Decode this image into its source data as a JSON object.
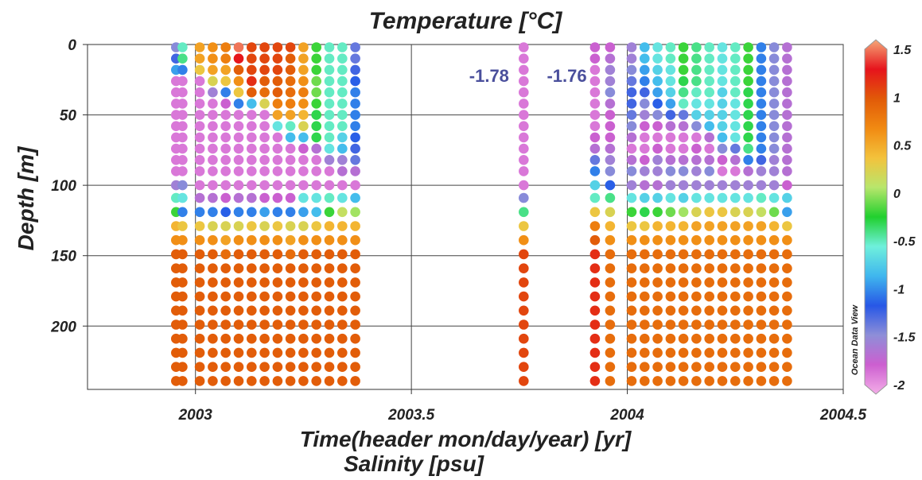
{
  "chart_data": {
    "type": "scatter",
    "title": "Temperature [°C]",
    "xlabel": "Time(header mon/day/year) [yr]",
    "xlabel2": "Salinity [psu]",
    "ylabel": "Depth [m]",
    "xlim": [
      2002.75,
      2004.5
    ],
    "ylim": [
      0,
      245
    ],
    "y_inverted": true,
    "grid": true,
    "x_ticks": [
      2003,
      2003.5,
      2004,
      2004.5
    ],
    "x_tick_labels": [
      "2003",
      "2003.5",
      "2004",
      "2004.5"
    ],
    "y_ticks": [
      0,
      50,
      100,
      150,
      200
    ],
    "y_tick_labels": [
      "0",
      "50",
      "100",
      "150",
      "200"
    ],
    "colorbar": {
      "range": [
        -2,
        1.5
      ],
      "ticks": [
        1.5,
        1,
        0.5,
        0,
        -0.5,
        -1,
        -1.5,
        -2
      ],
      "tick_labels": [
        "1.5",
        "1",
        "0.5",
        "0",
        "-0.5",
        "-1",
        "-1.5",
        "-2"
      ],
      "palette": [
        "#f4aee8",
        "#cc5fd0",
        "#8e8ed8",
        "#2757e6",
        "#3fb6ee",
        "#6ff0dc",
        "#21d02e",
        "#b8e66c",
        "#f3c23c",
        "#f18a12",
        "#e15a08",
        "#e6141c",
        "#f5a878"
      ],
      "source_label": "Ocean Data View"
    },
    "annotations": [
      {
        "text": "-1.78",
        "x": 2003.68,
        "y": 22
      },
      {
        "text": "-1.76",
        "x": 2003.86,
        "y": 22
      }
    ],
    "depth_levels": [
      2,
      10,
      18,
      26,
      34,
      42,
      50,
      58,
      66,
      74,
      82,
      90,
      100,
      109,
      119,
      129,
      139,
      149,
      159,
      169,
      179,
      189,
      199,
      209,
      219,
      229,
      239
    ],
    "stations_x": [
      2002.955,
      2002.97,
      2003.01,
      2003.04,
      2003.07,
      2003.1,
      2003.13,
      2003.16,
      2003.19,
      2003.22,
      2003.25,
      2003.28,
      2003.31,
      2003.34,
      2003.37,
      2003.76,
      2003.925,
      2003.96,
      2004.01,
      2004.04,
      2004.07,
      2004.1,
      2004.13,
      2004.16,
      2004.19,
      2004.22,
      2004.25,
      2004.28,
      2004.31,
      2004.34,
      2004.37
    ],
    "station_profiles": [
      [
        -1.4,
        -1.2,
        -0.9,
        -1.8,
        -1.8,
        -1.8,
        -1.8,
        -1.8,
        -1.8,
        -1.8,
        -1.8,
        -1.8,
        -1.5,
        -0.5,
        -0.2,
        0.4,
        0.6,
        0.9,
        0.9,
        0.9,
        0.9,
        0.9,
        0.9,
        0.9,
        0.9,
        0.9,
        0.9
      ],
      [
        -0.5,
        -0.4,
        -1.0,
        -1.8,
        -1.8,
        -1.8,
        -1.8,
        -1.8,
        -1.8,
        -1.8,
        -1.8,
        -1.8,
        -1.4,
        -0.6,
        -1.0,
        0.3,
        0.6,
        0.9,
        0.9,
        0.9,
        0.9,
        0.9,
        0.9,
        0.9,
        0.9,
        0.9,
        0.9
      ],
      [
        0.5,
        0.5,
        0.3,
        -1.8,
        -1.8,
        -1.8,
        -1.8,
        -1.8,
        -1.8,
        -1.8,
        -1.8,
        -1.8,
        -1.8,
        -1.6,
        -1.0,
        0.3,
        0.6,
        0.9,
        0.9,
        0.9,
        0.9,
        0.9,
        0.9,
        0.9,
        0.9,
        0.9,
        0.9
      ],
      [
        0.6,
        0.6,
        0.5,
        0.2,
        -1.5,
        -1.8,
        -1.8,
        -1.8,
        -1.8,
        -1.8,
        -1.8,
        -1.8,
        -1.8,
        -1.6,
        -1.0,
        0.2,
        0.6,
        0.9,
        0.9,
        0.9,
        0.9,
        0.9,
        0.9,
        0.9,
        0.9,
        0.9,
        0.9
      ],
      [
        0.7,
        0.7,
        0.5,
        0.3,
        -1.0,
        -1.7,
        -1.8,
        -1.8,
        -1.8,
        -1.8,
        -1.8,
        -1.8,
        -1.8,
        -1.7,
        -1.1,
        0.2,
        0.5,
        0.8,
        0.9,
        0.9,
        0.9,
        0.9,
        0.9,
        0.9,
        0.9,
        0.9,
        0.9
      ],
      [
        1.4,
        1.2,
        0.9,
        0.6,
        0.3,
        -1.0,
        -1.8,
        -1.8,
        -1.8,
        -1.8,
        -1.8,
        -1.8,
        -1.8,
        -1.6,
        -1.0,
        0.2,
        0.6,
        0.9,
        0.9,
        0.9,
        0.9,
        0.9,
        0.9,
        0.9,
        0.9,
        0.9,
        0.9
      ],
      [
        1.0,
        1.0,
        1.0,
        1.1,
        0.9,
        -0.8,
        -1.8,
        -1.8,
        -1.8,
        -1.8,
        -1.8,
        -1.8,
        -1.8,
        -1.6,
        -1.0,
        0.3,
        0.6,
        0.9,
        0.9,
        0.9,
        0.9,
        0.9,
        0.9,
        0.9,
        0.9,
        0.9,
        0.9
      ],
      [
        1.0,
        1.0,
        1.0,
        0.9,
        0.8,
        0.2,
        -1.8,
        -1.8,
        -1.8,
        -1.8,
        -1.8,
        -1.8,
        -1.8,
        -1.7,
        -0.9,
        0.2,
        0.6,
        0.9,
        0.9,
        0.9,
        0.9,
        0.9,
        0.9,
        0.9,
        0.9,
        0.9,
        0.9
      ],
      [
        1.0,
        1.0,
        1.0,
        0.9,
        0.9,
        0.7,
        0.5,
        -0.6,
        -1.8,
        -1.8,
        -1.8,
        -1.8,
        -1.8,
        -1.7,
        -1.0,
        0.3,
        0.6,
        0.9,
        0.9,
        0.9,
        0.9,
        0.9,
        0.9,
        0.9,
        0.9,
        0.9,
        0.9
      ],
      [
        1.0,
        0.9,
        0.9,
        0.8,
        0.8,
        0.7,
        0.5,
        -0.5,
        -0.8,
        -1.8,
        -1.8,
        -1.8,
        -1.8,
        -1.7,
        -1.0,
        0.2,
        0.5,
        0.8,
        0.9,
        0.9,
        0.9,
        0.9,
        0.9,
        0.9,
        0.9,
        0.9,
        0.9
      ],
      [
        0.5,
        0.5,
        0.5,
        0.6,
        0.7,
        0.6,
        0.4,
        0.2,
        -0.8,
        -1.7,
        -1.8,
        -1.8,
        -1.8,
        -0.6,
        -0.9,
        0.2,
        0.6,
        0.9,
        0.9,
        0.9,
        0.9,
        0.9,
        0.9,
        0.9,
        0.9,
        0.9,
        0.9
      ],
      [
        -0.2,
        -0.2,
        -0.2,
        -0.1,
        -0.1,
        -0.2,
        -0.3,
        -0.3,
        -0.3,
        -1.6,
        -1.8,
        -1.8,
        -1.8,
        -0.6,
        -0.8,
        0.3,
        0.6,
        0.9,
        0.9,
        0.9,
        0.9,
        0.9,
        0.9,
        0.9,
        0.9,
        0.9,
        0.9
      ],
      [
        -0.5,
        -0.5,
        -0.5,
        -0.5,
        -0.5,
        -0.5,
        -0.5,
        -0.5,
        -0.5,
        -0.6,
        -1.5,
        -1.8,
        -1.8,
        -0.5,
        -0.2,
        0.4,
        0.6,
        0.9,
        0.9,
        0.9,
        0.9,
        0.9,
        0.9,
        0.9,
        0.9,
        0.9,
        0.9
      ],
      [
        -0.5,
        -0.5,
        -0.5,
        -0.5,
        -0.5,
        -0.5,
        -0.5,
        -0.5,
        -0.7,
        -0.8,
        -1.5,
        -1.6,
        -1.8,
        -0.6,
        0.1,
        0.4,
        0.6,
        0.9,
        0.9,
        0.9,
        0.9,
        0.9,
        0.9,
        0.9,
        0.9,
        0.9,
        0.9
      ],
      [
        -1.3,
        -1.3,
        -1.2,
        -1.1,
        -1.0,
        -1.0,
        -1.0,
        -1.0,
        -1.1,
        -1.2,
        -1.3,
        -1.6,
        -1.8,
        -0.8,
        0.0,
        0.4,
        0.6,
        0.9,
        0.9,
        0.9,
        0.9,
        0.9,
        0.9,
        0.9,
        0.9,
        0.9,
        0.9
      ],
      [
        -1.8,
        -1.8,
        -1.8,
        -1.8,
        -1.8,
        -1.8,
        -1.8,
        -1.8,
        -1.8,
        -1.8,
        -1.8,
        -1.8,
        -1.8,
        -1.4,
        -0.4,
        0.3,
        0.6,
        1.0,
        1.0,
        1.0,
        1.0,
        1.0,
        1.0,
        1.0,
        1.0,
        1.0,
        1.0
      ],
      [
        -1.7,
        -1.7,
        -1.8,
        -1.8,
        -1.8,
        -1.8,
        -1.8,
        -1.8,
        -1.7,
        -1.6,
        -1.3,
        -1.0,
        -0.7,
        -0.5,
        0.3,
        0.7,
        0.9,
        1.1,
        1.1,
        1.1,
        1.1,
        1.1,
        1.1,
        1.1,
        1.1,
        1.1,
        1.1
      ],
      [
        -1.7,
        -1.6,
        -1.5,
        -1.5,
        -1.4,
        -1.6,
        -1.7,
        -1.7,
        -1.7,
        -1.6,
        -1.5,
        -1.4,
        -1.1,
        -0.4,
        0.2,
        0.4,
        0.6,
        0.8,
        0.8,
        0.8,
        0.8,
        0.8,
        0.8,
        0.8,
        0.8,
        0.8,
        0.8
      ],
      [
        -1.5,
        -1.5,
        -1.4,
        -1.3,
        -1.2,
        -1.2,
        -1.3,
        -1.4,
        -1.6,
        -1.8,
        -1.6,
        -1.4,
        -1.5,
        -0.6,
        -0.2,
        0.3,
        0.6,
        0.8,
        0.8,
        0.8,
        0.8,
        0.8,
        0.8,
        0.8,
        0.8,
        0.8,
        0.8
      ],
      [
        -0.8,
        -0.8,
        -0.9,
        -1.0,
        -1.2,
        -1.4,
        -1.5,
        -1.7,
        -1.8,
        -1.8,
        -1.7,
        -1.5,
        -1.6,
        -0.7,
        -0.3,
        0.3,
        0.6,
        0.8,
        0.8,
        0.8,
        0.8,
        0.8,
        0.8,
        0.8,
        0.8,
        0.8,
        0.8
      ],
      [
        -0.6,
        -0.6,
        -0.7,
        -0.8,
        -0.9,
        -1.1,
        -1.4,
        -1.7,
        -1.8,
        -1.7,
        -1.5,
        -1.5,
        -1.6,
        -0.7,
        -0.2,
        0.4,
        0.6,
        0.8,
        0.8,
        0.8,
        0.8,
        0.8,
        0.8,
        0.8,
        0.8,
        0.8,
        0.8
      ],
      [
        -0.5,
        -0.5,
        -0.6,
        -0.6,
        -0.7,
        -0.9,
        -1.2,
        -1.6,
        -1.8,
        -1.8,
        -1.6,
        -1.4,
        -1.5,
        -0.6,
        -0.1,
        0.4,
        0.6,
        0.8,
        0.8,
        0.8,
        0.8,
        0.8,
        0.8,
        0.8,
        0.8,
        0.8,
        0.8
      ],
      [
        -0.2,
        -0.2,
        -0.2,
        -0.3,
        -0.4,
        -0.5,
        -1.3,
        -1.6,
        -1.8,
        -1.8,
        -1.6,
        -1.4,
        -1.5,
        -0.7,
        0.0,
        0.4,
        0.6,
        0.8,
        0.8,
        0.8,
        0.8,
        0.8,
        0.8,
        0.8,
        0.8,
        0.8,
        0.8
      ],
      [
        -0.4,
        -0.4,
        -0.4,
        -0.4,
        -0.5,
        -0.6,
        -0.7,
        -1.4,
        -1.8,
        -1.7,
        -1.6,
        -1.5,
        -1.5,
        -0.6,
        0.2,
        0.5,
        0.6,
        0.8,
        0.8,
        0.8,
        0.8,
        0.8,
        0.8,
        0.8,
        0.8,
        0.8,
        0.8
      ],
      [
        -0.5,
        -0.5,
        -0.5,
        -0.5,
        -0.5,
        -0.6,
        -0.7,
        -0.8,
        -1.6,
        -1.8,
        -1.6,
        -1.4,
        -1.5,
        -0.6,
        0.3,
        0.5,
        0.6,
        0.8,
        0.8,
        0.8,
        0.8,
        0.8,
        0.8,
        0.8,
        0.8,
        0.8,
        0.8
      ],
      [
        -0.6,
        -0.6,
        -0.6,
        -0.6,
        -0.7,
        -0.7,
        -0.7,
        -0.7,
        -0.8,
        -1.4,
        -1.7,
        -1.8,
        -1.5,
        -0.6,
        0.3,
        0.5,
        0.6,
        0.8,
        0.8,
        0.8,
        0.8,
        0.8,
        0.8,
        0.8,
        0.8,
        0.8,
        0.8
      ],
      [
        -0.5,
        -0.5,
        -0.5,
        -0.5,
        -0.5,
        -0.6,
        -0.6,
        -0.6,
        -0.6,
        -1.3,
        -1.6,
        -1.8,
        -1.5,
        -0.6,
        0.2,
        0.5,
        0.6,
        0.8,
        0.8,
        0.8,
        0.8,
        0.8,
        0.8,
        0.8,
        0.8,
        0.8,
        0.8
      ],
      [
        -0.2,
        -0.2,
        -0.2,
        -0.2,
        -0.3,
        -0.3,
        -0.3,
        -0.3,
        -0.3,
        -0.4,
        -1.0,
        -1.6,
        -1.5,
        -0.6,
        0.2,
        0.5,
        0.6,
        0.8,
        0.8,
        0.8,
        0.8,
        0.8,
        0.8,
        0.8,
        0.8,
        0.8,
        0.8
      ],
      [
        -1.0,
        -1.0,
        -1.0,
        -1.0,
        -1.0,
        -1.0,
        -1.0,
        -1.0,
        -1.0,
        -1.0,
        -1.2,
        -1.5,
        -1.5,
        -0.5,
        0.1,
        0.5,
        0.6,
        0.8,
        0.8,
        0.8,
        0.8,
        0.8,
        0.8,
        0.8,
        0.8,
        0.8,
        0.8
      ],
      [
        -1.4,
        -1.4,
        -1.4,
        -1.4,
        -1.4,
        -1.4,
        -1.4,
        -1.4,
        -1.4,
        -1.4,
        -1.5,
        -1.5,
        -1.5,
        -0.6,
        -0.1,
        0.4,
        0.6,
        0.8,
        0.8,
        0.8,
        0.8,
        0.8,
        0.8,
        0.8,
        0.8,
        0.8,
        0.8
      ],
      [
        -1.6,
        -1.6,
        -1.6,
        -1.6,
        -1.6,
        -1.6,
        -1.6,
        -1.6,
        -1.6,
        -1.6,
        -1.6,
        -1.6,
        -1.7,
        -0.7,
        -0.9,
        0.3,
        0.6,
        0.8,
        0.8,
        0.8,
        0.8,
        0.8,
        0.8,
        0.8,
        0.8,
        0.8,
        0.8
      ]
    ]
  }
}
